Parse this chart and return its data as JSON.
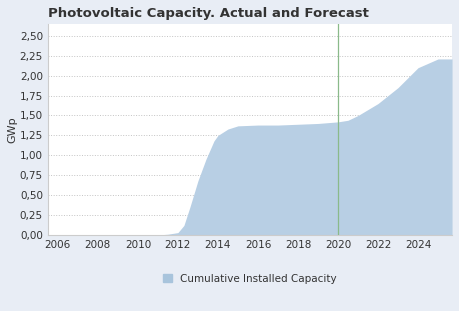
{
  "title": "Photovoltaic Capacity. Actual and Forecast",
  "ylabel": "GWp",
  "fill_color": "#b8cfe4",
  "vline_color": "#8aba8a",
  "vline_x": 2020,
  "figure_bg": "#e8edf5",
  "axes_bg": "#ffffff",
  "legend_label": "Cumulative Installed Capacity",
  "legend_color": "#a8c4dc",
  "ytick_labels": [
    "0,00",
    "0,25",
    "0,50",
    "0,75",
    "1,00",
    "1,25",
    "1,50",
    "1,75",
    "2,00",
    "2,25",
    "2,50"
  ],
  "ytick_values": [
    0.0,
    0.25,
    0.5,
    0.75,
    1.0,
    1.25,
    1.5,
    1.75,
    2.0,
    2.25,
    2.5
  ],
  "xlim": [
    2005.5,
    2025.7
  ],
  "ylim": [
    0.0,
    2.65
  ],
  "xticks": [
    2006,
    2008,
    2010,
    2012,
    2014,
    2016,
    2018,
    2020,
    2022,
    2024
  ],
  "data_x": [
    2005.5,
    2006,
    2007,
    2008,
    2009,
    2010,
    2011,
    2011.5,
    2012,
    2012.3,
    2012.6,
    2013,
    2013.4,
    2013.8,
    2014,
    2014.5,
    2015,
    2016,
    2017,
    2018,
    2019,
    2020,
    2020.5,
    2021,
    2022,
    2023,
    2024,
    2025,
    2025.7
  ],
  "data_y": [
    0.0,
    0.0,
    0.0,
    0.0,
    0.0,
    0.0,
    0.0,
    0.01,
    0.03,
    0.12,
    0.35,
    0.68,
    0.95,
    1.18,
    1.25,
    1.33,
    1.37,
    1.38,
    1.38,
    1.39,
    1.4,
    1.42,
    1.44,
    1.5,
    1.65,
    1.85,
    2.1,
    2.21,
    2.21
  ],
  "title_fontsize": 9.5,
  "tick_fontsize": 7.5,
  "ylabel_fontsize": 8.0,
  "legend_fontsize": 7.5,
  "grid_color": "#aaaaaa",
  "spine_color": "#cccccc",
  "text_color": "#333333"
}
